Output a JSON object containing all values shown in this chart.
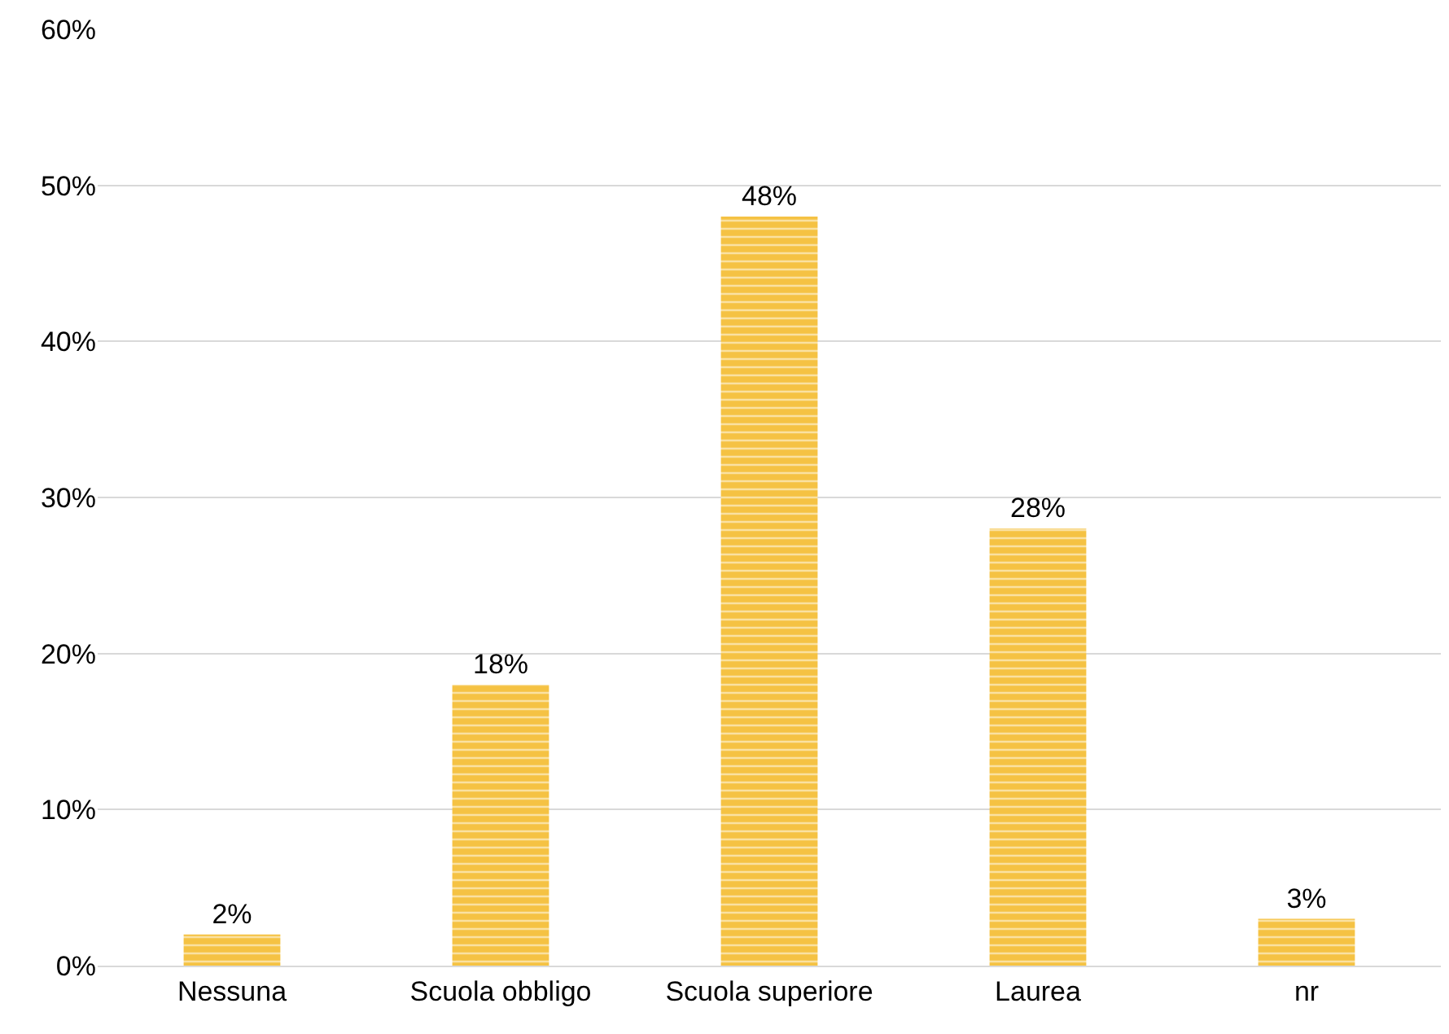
{
  "chart_data": {
    "type": "bar",
    "categories": [
      "Nessuna",
      "Scuola obbligo",
      "Scuola superiore",
      "Laurea",
      "nr"
    ],
    "values": [
      2,
      18,
      48,
      28,
      3
    ],
    "value_labels": [
      "2%",
      "18%",
      "48%",
      "28%",
      "3%"
    ],
    "color": "#f5c243",
    "ylim": [
      0,
      60
    ],
    "yticks": [
      {
        "value": 0,
        "label": "0%"
      },
      {
        "value": 10,
        "label": "10%"
      },
      {
        "value": 20,
        "label": "20%"
      },
      {
        "value": 30,
        "label": "30%"
      },
      {
        "value": 40,
        "label": "40%"
      },
      {
        "value": 50,
        "label": "50%"
      },
      {
        "value": 60,
        "label": "60%"
      }
    ],
    "grid": "y",
    "legend": false
  }
}
